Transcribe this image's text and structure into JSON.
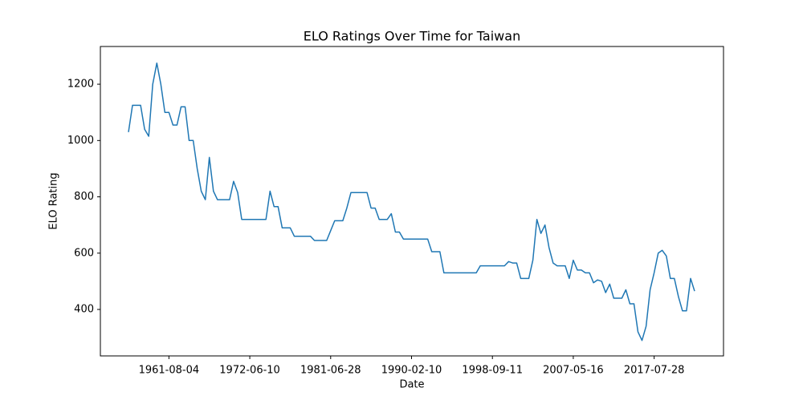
{
  "chart_data": {
    "type": "line",
    "title": "ELO Ratings Over Time for Taiwan",
    "x_label": "Date",
    "y_label": "ELO Rating",
    "categories": [
      null,
      null,
      null,
      null,
      null,
      null,
      null,
      null,
      null,
      null,
      "1961-08-04",
      null,
      null,
      null,
      null,
      null,
      null,
      null,
      null,
      null,
      null,
      null,
      null,
      null,
      null,
      null,
      null,
      null,
      null,
      null,
      "1972-06-10",
      null,
      null,
      null,
      null,
      null,
      null,
      null,
      null,
      null,
      null,
      null,
      null,
      null,
      null,
      null,
      null,
      null,
      null,
      null,
      "1981-06-28",
      null,
      null,
      null,
      null,
      null,
      null,
      null,
      null,
      null,
      null,
      null,
      null,
      null,
      null,
      null,
      null,
      null,
      null,
      null,
      "1990-02-10",
      null,
      null,
      null,
      null,
      null,
      null,
      null,
      null,
      null,
      null,
      null,
      null,
      null,
      null,
      null,
      null,
      null,
      null,
      null,
      "1998-09-11",
      null,
      null,
      null,
      null,
      null,
      null,
      null,
      null,
      null,
      null,
      null,
      null,
      null,
      null,
      null,
      null,
      null,
      null,
      null,
      "2007-05-16",
      null,
      null,
      null,
      null,
      null,
      null,
      null,
      null,
      null,
      null,
      null,
      null,
      null,
      null,
      null,
      null,
      null,
      null,
      null,
      "2017-07-28",
      null,
      null,
      null,
      null,
      null,
      null,
      null,
      null,
      null,
      null
    ],
    "series": [
      {
        "name": "Taiwan",
        "color": "#1f77b4",
        "values": [
          1030,
          1125,
          1125,
          1125,
          1040,
          1015,
          1200,
          1275,
          1200,
          1100,
          1100,
          1055,
          1055,
          1120,
          1120,
          1000,
          1000,
          900,
          820,
          790,
          940,
          820,
          790,
          790,
          790,
          790,
          855,
          815,
          720,
          720,
          720,
          720,
          720,
          720,
          720,
          820,
          765,
          765,
          690,
          690,
          690,
          660,
          660,
          660,
          660,
          660,
          645,
          645,
          645,
          645,
          680,
          715,
          715,
          715,
          760,
          815,
          815,
          815,
          815,
          815,
          760,
          760,
          720,
          720,
          720,
          740,
          675,
          675,
          650,
          650,
          650,
          650,
          650,
          650,
          650,
          605,
          605,
          605,
          530,
          530,
          530,
          530,
          530,
          530,
          530,
          530,
          530,
          555,
          555,
          555,
          555,
          555,
          555,
          555,
          570,
          565,
          565,
          510,
          510,
          510,
          575,
          720,
          670,
          700,
          620,
          565,
          555,
          555,
          555,
          510,
          575,
          540,
          540,
          530,
          530,
          495,
          505,
          500,
          460,
          490,
          440,
          440,
          440,
          470,
          420,
          420,
          320,
          290,
          340,
          470,
          530,
          600,
          610,
          590,
          510,
          510,
          445,
          395,
          395,
          510,
          465
        ]
      }
    ],
    "ylim": [
      235,
      1334
    ],
    "yticks": [
      400,
      600,
      800,
      1000,
      1200
    ]
  }
}
